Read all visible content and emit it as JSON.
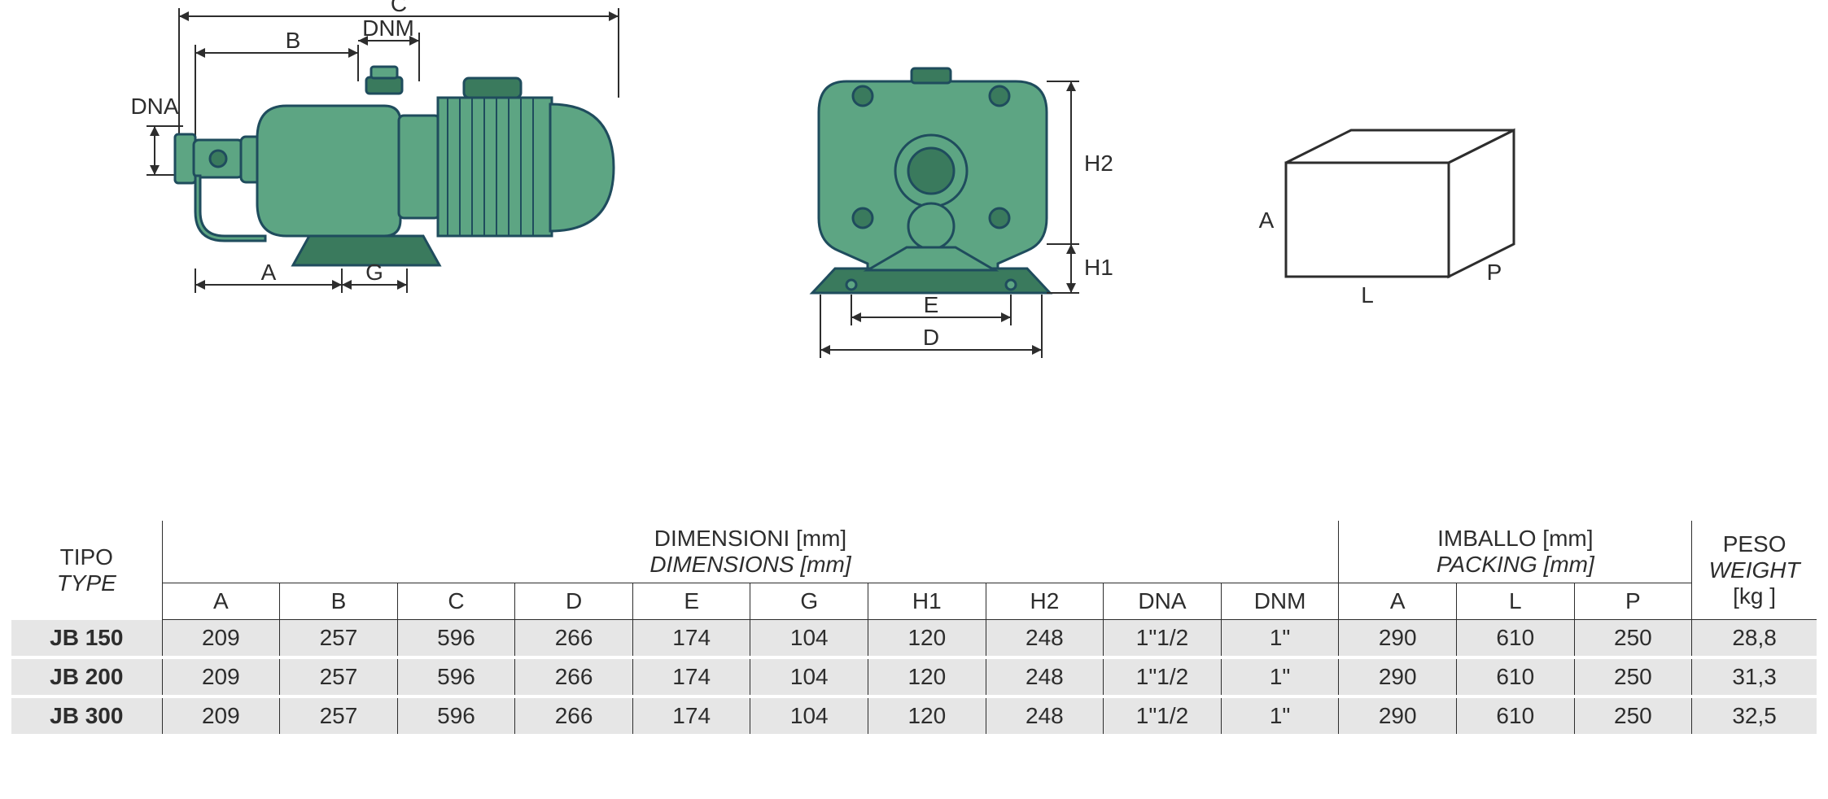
{
  "diagram": {
    "pump_fill": "#5da583",
    "pump_stroke": "#1f4c5d",
    "line_color": "#2d2d2d",
    "background": "#ffffff",
    "labels_side": {
      "C": "C",
      "B": "B",
      "DNM": "DNM",
      "DNA": "DNA",
      "A": "A",
      "G": "G"
    },
    "labels_front": {
      "H2": "H2",
      "H1": "H1",
      "E": "E",
      "D": "D"
    },
    "labels_box": {
      "A": "A",
      "L": "L",
      "P": "P"
    }
  },
  "table": {
    "headers": {
      "tipo": "TIPO",
      "tipo_en": "TYPE",
      "dimensioni": "DIMENSIONI [mm]",
      "dimensioni_en": "DIMENSIONS [mm]",
      "imballo": "IMBALLO [mm]",
      "imballo_en": "PACKING [mm]",
      "peso": "PESO",
      "peso_en": "WEIGHT",
      "peso_unit": "[kg ]"
    },
    "dim_cols": [
      "A",
      "B",
      "C",
      "D",
      "E",
      "G",
      "H1",
      "H2",
      "DNA",
      "DNM"
    ],
    "pack_cols": [
      "A",
      "L",
      "P"
    ],
    "rows": [
      {
        "type": "JB 150",
        "dims": [
          "209",
          "257",
          "596",
          "266",
          "174",
          "104",
          "120",
          "248",
          "1\"1/2",
          "1\""
        ],
        "pack": [
          "290",
          "610",
          "250"
        ],
        "peso": "28,8"
      },
      {
        "type": "JB 200",
        "dims": [
          "209",
          "257",
          "596",
          "266",
          "174",
          "104",
          "120",
          "248",
          "1\"1/2",
          "1\""
        ],
        "pack": [
          "290",
          "610",
          "250"
        ],
        "peso": "31,3"
      },
      {
        "type": "JB 300",
        "dims": [
          "209",
          "257",
          "596",
          "266",
          "174",
          "104",
          "120",
          "248",
          "1\"1/2",
          "1\""
        ],
        "pack": [
          "290",
          "610",
          "250"
        ],
        "peso": "32,5"
      }
    ]
  }
}
